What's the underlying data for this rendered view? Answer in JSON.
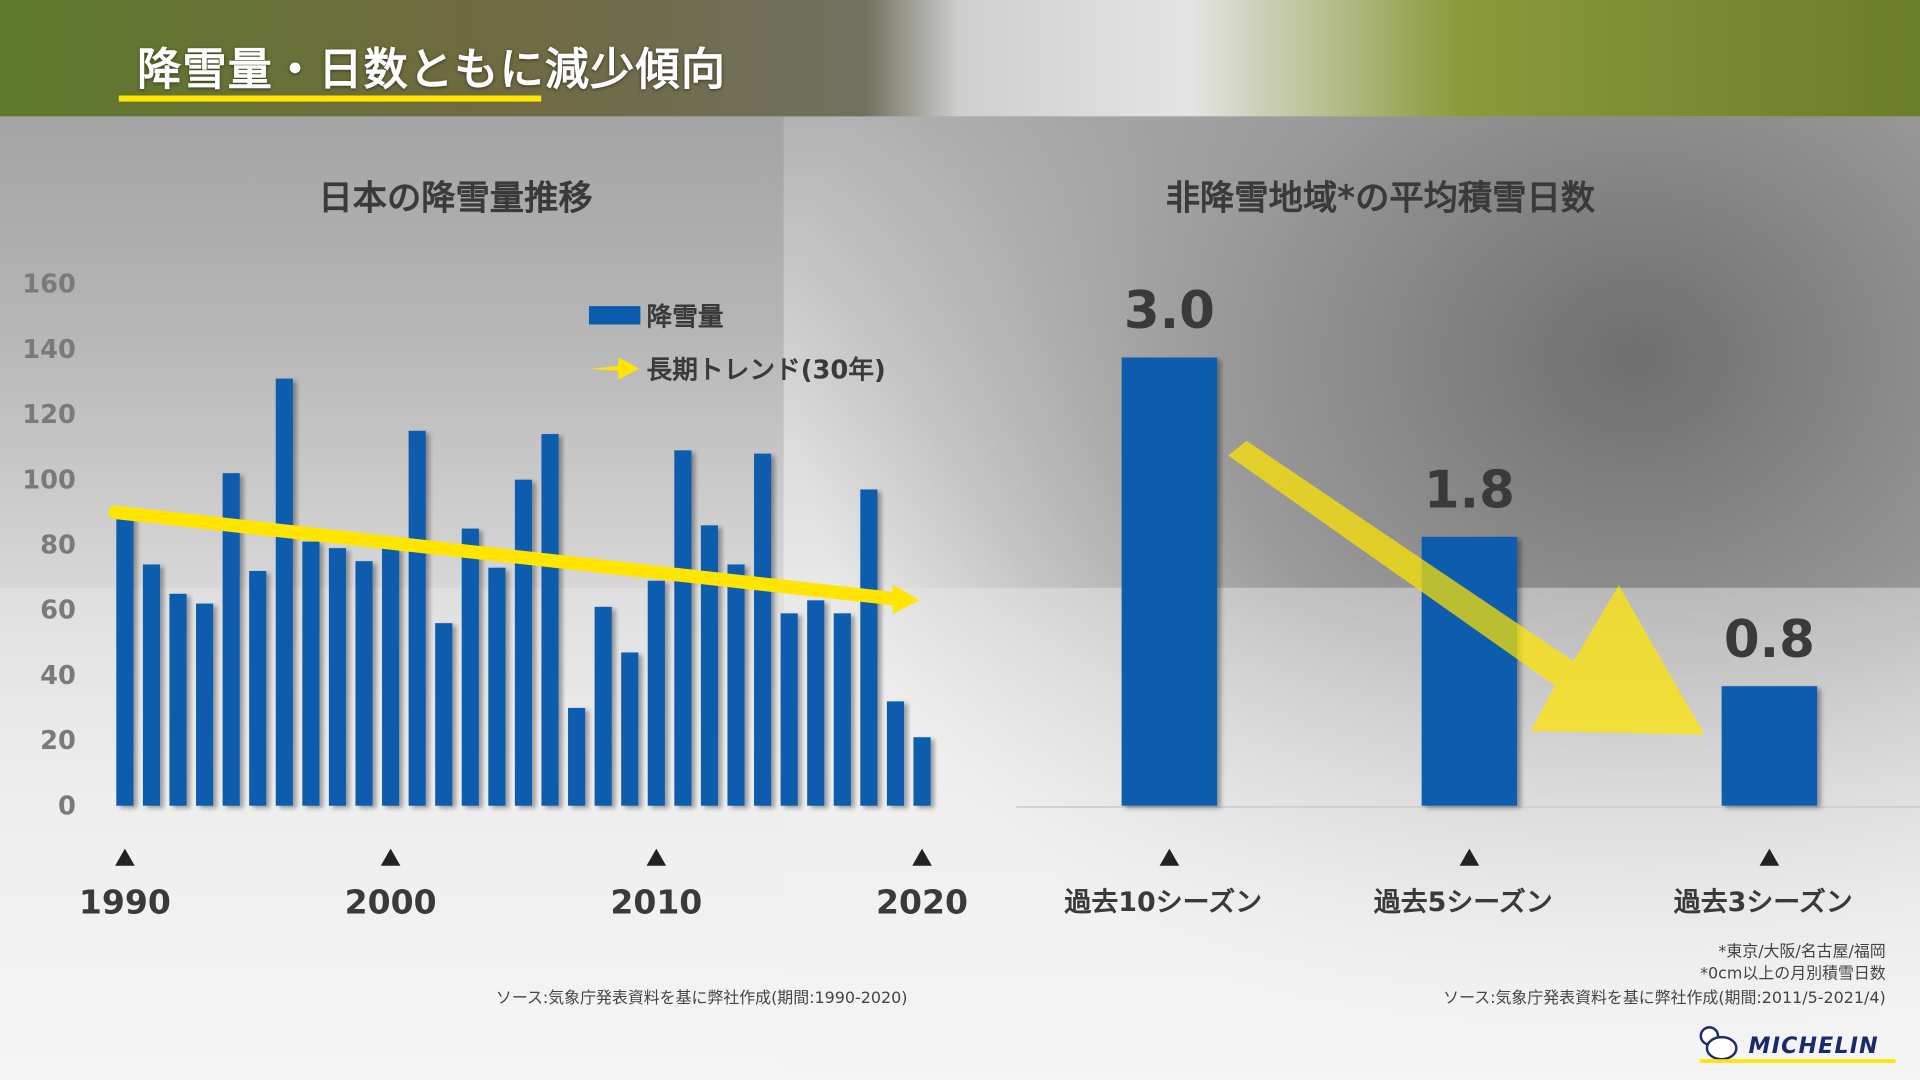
{
  "title": "降雪量・日数ともに減少傾向",
  "colors": {
    "bar": "#0b5cad",
    "trend": "#ffe500",
    "text": "#3a3a3a",
    "axis": "#7a7a7a"
  },
  "chart_data": [
    {
      "type": "bar",
      "title": "日本の降雪量推移",
      "x": [
        1990,
        1991,
        1992,
        1993,
        1994,
        1995,
        1996,
        1997,
        1998,
        1999,
        2000,
        2001,
        2002,
        2003,
        2004,
        2005,
        2006,
        2007,
        2008,
        2009,
        2010,
        2011,
        2012,
        2013,
        2014,
        2015,
        2016,
        2017,
        2018,
        2019,
        2020
      ],
      "series": [
        {
          "name": "降雪量",
          "values": [
            89,
            74,
            65,
            62,
            102,
            72,
            131,
            81,
            79,
            75,
            79,
            115,
            56,
            85,
            73,
            100,
            114,
            30,
            61,
            47,
            69,
            109,
            86,
            74,
            108,
            59,
            63,
            59,
            97,
            32,
            21
          ]
        },
        {
          "name": "長期トレンド(30年)",
          "type": "line",
          "x": [
            1990,
            2020
          ],
          "values": [
            90,
            63
          ]
        }
      ],
      "ylim": [
        0,
        160
      ],
      "yticks": [
        "0",
        "20",
        "40",
        "60",
        "80",
        "100",
        "120",
        "140",
        "160"
      ],
      "xtick_labels": [
        "1990",
        "2000",
        "2010",
        "2020"
      ],
      "legend": "top-right",
      "grid": false,
      "source": "ソース:気象庁発表資料を基に弊社作成(期間:1990-2020)"
    },
    {
      "type": "bar",
      "title": "非降雪地域*の平均積雪日数",
      "categories": [
        "過去10シーズン",
        "過去5シーズン",
        "過去3シーズン"
      ],
      "values": [
        3.0,
        1.8,
        0.8
      ],
      "data_labels": [
        "3.0",
        "1.8",
        "0.8"
      ],
      "notes": [
        "*東京/大阪/名古屋/福岡",
        "*0cm以上の月別積雪日数"
      ],
      "source": "ソース:気象庁発表資料を基に弊社作成(期間:2011/5-2021/4)"
    }
  ],
  "logo": "MICHELIN"
}
